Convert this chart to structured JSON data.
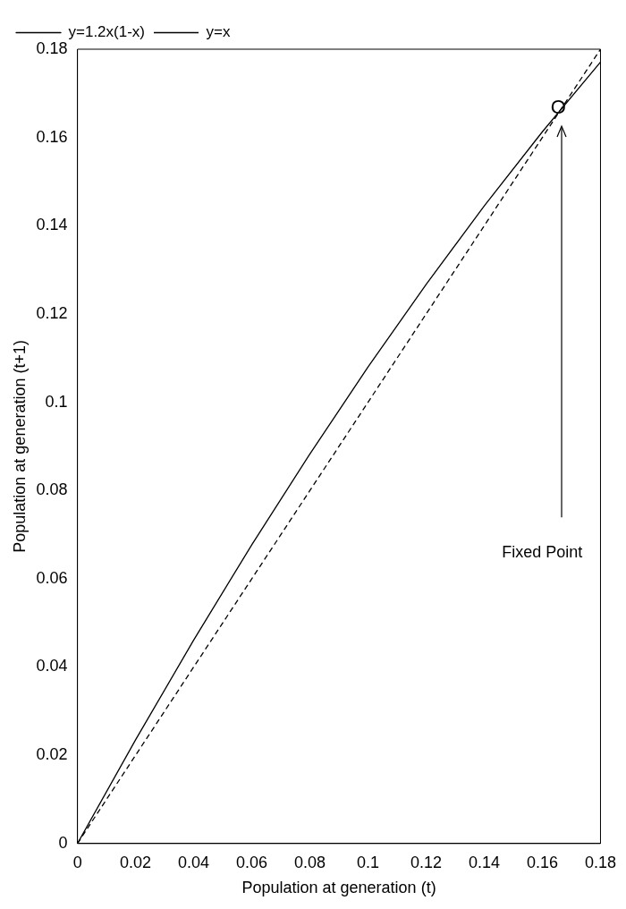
{
  "chart_data": {
    "type": "line",
    "xlabel": "Population at generation (t)",
    "ylabel": "Population at generation (t+1)",
    "x": [
      0,
      0.02,
      0.04,
      0.06,
      0.08,
      0.1,
      0.12,
      0.14,
      0.16,
      0.18
    ],
    "series": [
      {
        "name": "y=1.2x(1-x)",
        "color": "#000000",
        "line_style": "solid",
        "values": [
          0,
          0.0235,
          0.0461,
          0.0677,
          0.0883,
          0.108,
          0.1267,
          0.1445,
          0.1613,
          0.1771
        ]
      },
      {
        "name": "y=x",
        "color": "#000000",
        "line_style": "dashed",
        "values": [
          0,
          0.02,
          0.04,
          0.06,
          0.08,
          0.1,
          0.12,
          0.14,
          0.16,
          0.18
        ]
      }
    ],
    "xlim": [
      0,
      0.18
    ],
    "xticks": [
      0,
      0.02,
      0.04,
      0.06,
      0.08,
      0.1,
      0.12,
      0.14,
      0.16,
      0.18
    ],
    "ylim": [
      0,
      0.18
    ],
    "yticks": [
      0,
      0.02,
      0.04,
      0.06,
      0.08,
      0.1,
      0.12,
      0.14,
      0.16,
      0.18
    ],
    "grid": false,
    "legend": "top left",
    "marker": "none",
    "annotations": [
      {
        "text": "O",
        "x": 0.1667,
        "y": 0.1667
      },
      "Fixed Point"
    ]
  }
}
